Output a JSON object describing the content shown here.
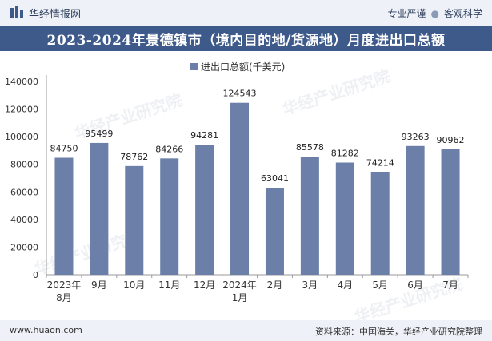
{
  "header": {
    "brand_name": "华经情报网",
    "tag1": "专业严谨",
    "tag2": "客观科学",
    "separator": "●"
  },
  "title": "2023-2024年景德镇市（境内目的地/货源地）月度进出口总额",
  "footer": {
    "site": "www.huaon.com",
    "source": "资料来源：中国海关，华经产业研究院整理"
  },
  "watermark": "华经产业研究院",
  "watermark_url": "www.huaon.com",
  "colors": {
    "bar": "#6b7fa8",
    "title_bg": "#3d5a8a",
    "axis": "#999999"
  },
  "chart_data": {
    "type": "bar",
    "categories": [
      "2023年\n8月",
      "9月",
      "10月",
      "11月",
      "12月",
      "2024年\n1月",
      "2月",
      "3月",
      "4月",
      "5月",
      "6月",
      "7月"
    ],
    "series": [
      {
        "name": "进出口总额(千美元)",
        "values": [
          84750,
          95499,
          78762,
          84266,
          94281,
          124543,
          63041,
          85578,
          81282,
          74214,
          93263,
          90962
        ]
      }
    ],
    "yticks": [
      0,
      20000,
      40000,
      60000,
      80000,
      100000,
      120000,
      140000
    ],
    "ylim": [
      0,
      140000
    ],
    "legend_position": "top-center",
    "grid": false
  }
}
